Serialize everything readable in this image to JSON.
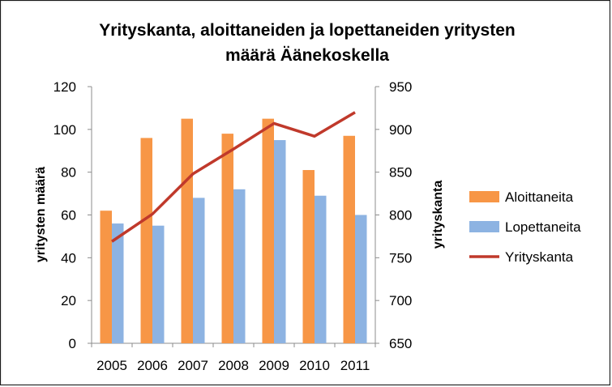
{
  "chart_data": {
    "type": "bar",
    "title_line1": "Yrityskanta, aloittaneiden ja lopettaneiden yritysten",
    "title_line2": "määrä Äänekoskella",
    "categories": [
      "2005",
      "2006",
      "2007",
      "2008",
      "2009",
      "2010",
      "2011"
    ],
    "series": [
      {
        "name": "Aloittaneita",
        "type": "bar",
        "axis": "left",
        "color": "#F79646",
        "values": [
          62,
          96,
          105,
          98,
          105,
          81,
          97
        ]
      },
      {
        "name": "Lopettaneita",
        "type": "bar",
        "axis": "left",
        "color": "#8DB3E2",
        "values": [
          56,
          55,
          68,
          72,
          95,
          69,
          60
        ]
      },
      {
        "name": "Yrityskanta",
        "type": "line",
        "axis": "right",
        "color": "#C0392B",
        "values": [
          769,
          801,
          848,
          877,
          907,
          892,
          920
        ]
      }
    ],
    "ylabel_left": "yritysten määrä",
    "ylabel_right": "yrityskanta",
    "ylim_left": [
      0,
      120
    ],
    "yticks_left": [
      "0",
      "20",
      "40",
      "60",
      "80",
      "100",
      "120"
    ],
    "ylim_right": [
      650,
      950
    ],
    "yticks_right": [
      "650",
      "700",
      "750",
      "800",
      "850",
      "900",
      "950"
    ],
    "grid": false,
    "legend_position": "right"
  }
}
